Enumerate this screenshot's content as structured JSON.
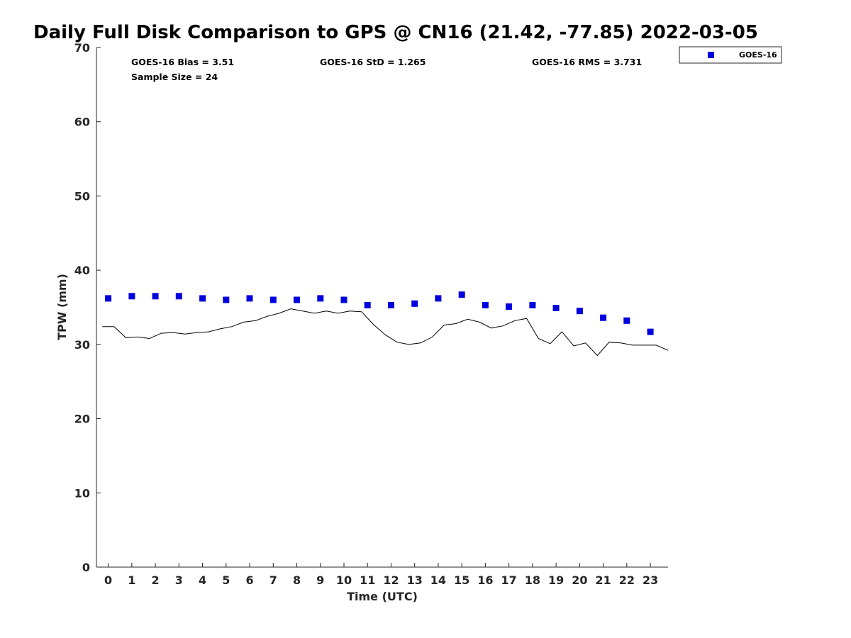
{
  "chart_data": {
    "type": "scatter",
    "title": "Daily Full Disk Comparison to GPS @ CN16 (21.42, -77.85) 2022-03-05",
    "xlabel": "Time (UTC)",
    "ylabel": "TPW (mm)",
    "xlim": [
      -0.5,
      23.75
    ],
    "ylim": [
      0,
      70
    ],
    "x_ticks": [
      0,
      1,
      2,
      3,
      4,
      5,
      6,
      7,
      8,
      9,
      10,
      11,
      12,
      13,
      14,
      15,
      16,
      17,
      18,
      19,
      20,
      21,
      22,
      23
    ],
    "y_ticks": [
      0,
      10,
      20,
      30,
      40,
      50,
      60,
      70
    ],
    "grid": false,
    "legend_position": "top-right",
    "stats": {
      "bias": "GOES-16 Bias = 3.51",
      "sample_size": "Sample Size = 24",
      "std": "GOES-16 StD = 1.265",
      "rms": "GOES-16 RMS = 3.731"
    },
    "series": [
      {
        "name": "GOES-16",
        "kind": "markers",
        "marker": "square",
        "color": "#0000dd",
        "x": [
          0,
          1,
          2,
          3,
          4,
          5,
          6,
          7,
          8,
          9,
          10,
          11,
          12,
          13,
          14,
          15,
          16,
          17,
          18,
          19,
          20,
          21,
          22,
          23
        ],
        "y": [
          36.2,
          36.5,
          36.5,
          36.5,
          36.2,
          36.0,
          36.2,
          36.0,
          36.0,
          36.2,
          36.0,
          35.3,
          35.3,
          35.5,
          36.2,
          36.7,
          35.3,
          35.1,
          35.3,
          34.9,
          34.5,
          33.6,
          33.2,
          31.7
        ]
      },
      {
        "kind": "line",
        "color": "#000000",
        "x": [
          -0.25,
          0.25,
          0.75,
          1.25,
          1.75,
          2.25,
          2.75,
          3.25,
          3.75,
          4.25,
          4.75,
          5.25,
          5.75,
          6.25,
          6.75,
          7.25,
          7.75,
          8.25,
          8.75,
          9.25,
          9.75,
          10.25,
          10.75,
          11.25,
          11.75,
          12.25,
          12.75,
          13.25,
          13.75,
          14.25,
          14.75,
          15.25,
          15.75,
          16.25,
          16.75,
          17.25,
          17.75,
          18.25,
          18.75,
          19.25,
          19.75,
          20.25,
          20.75,
          21.25,
          21.75,
          22.25,
          22.75,
          23.25,
          23.75
        ],
        "y": [
          32.4,
          32.4,
          30.9,
          31.0,
          30.8,
          31.5,
          31.6,
          31.4,
          31.6,
          31.7,
          32.1,
          32.4,
          33.0,
          33.2,
          33.8,
          34.2,
          34.8,
          34.5,
          34.2,
          34.5,
          34.2,
          34.5,
          34.4,
          32.7,
          31.3,
          30.3,
          30.0,
          30.2,
          31.0,
          32.6,
          32.8,
          33.4,
          33.0,
          32.2,
          32.5,
          33.2,
          33.5,
          30.8,
          30.1,
          31.7,
          29.8,
          30.2,
          28.5,
          30.3,
          30.2,
          29.9,
          29.9,
          29.9,
          29.2
        ]
      }
    ]
  }
}
